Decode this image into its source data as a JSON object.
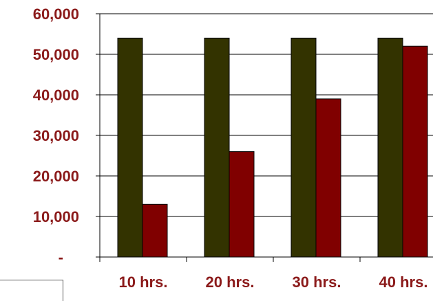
{
  "chart_data": {
    "type": "bar",
    "categories": [
      "10 hrs.",
      "20 hrs.",
      "30 hrs.",
      "40 hrs."
    ],
    "series": [
      {
        "values": [
          54000,
          54000,
          54000,
          54000
        ],
        "color": "#333300"
      },
      {
        "values": [
          13000,
          26000,
          39000,
          52000
        ],
        "color": "#800000"
      }
    ],
    "ylim": [
      0,
      60000
    ],
    "yticks": [
      {
        "value": 0,
        "label": "-"
      },
      {
        "value": 10000,
        "label": "10,000"
      },
      {
        "value": 20000,
        "label": "20,000"
      },
      {
        "value": 30000,
        "label": "30,000"
      },
      {
        "value": 40000,
        "label": "40,000"
      },
      {
        "value": 50000,
        "label": "50,000"
      },
      {
        "value": 60000,
        "label": "60,000"
      }
    ],
    "grid": true,
    "label_color": "#8B1A1A"
  }
}
